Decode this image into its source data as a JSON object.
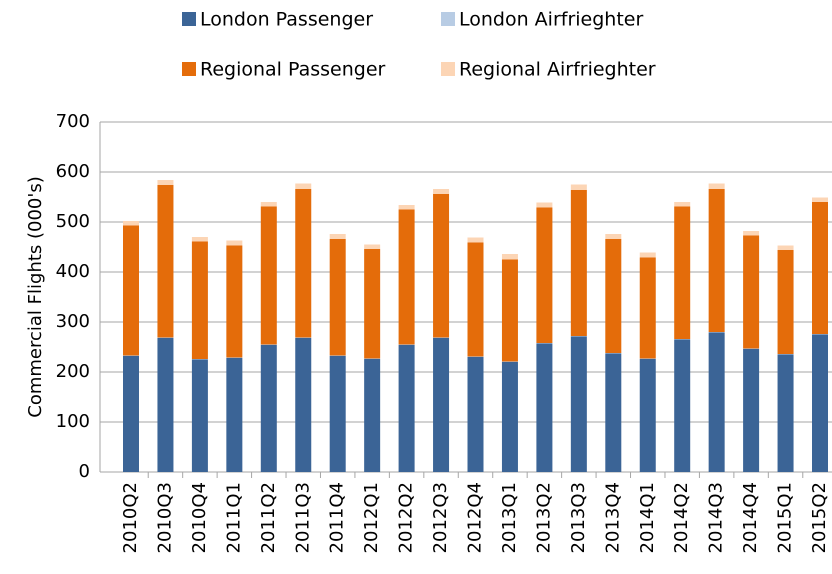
{
  "chart_data": {
    "type": "stacked_bar",
    "categories": [
      "2010Q2",
      "2010Q3",
      "2010Q4",
      "2011Q1",
      "2011Q2",
      "2011Q3",
      "2011Q4",
      "2012Q1",
      "2012Q2",
      "2012Q3",
      "2012Q4",
      "2013Q1",
      "2013Q2",
      "2013Q3",
      "2013Q4",
      "2014Q1",
      "2014Q2",
      "2014Q3",
      "2014Q4",
      "2015Q1",
      "2015Q2"
    ],
    "series": [
      {
        "name": "London Passenger",
        "color": "#3b6496",
        "values": [
          232,
          268,
          225,
          228,
          254,
          268,
          232,
          226,
          254,
          268,
          230,
          220,
          257,
          271,
          237,
          226,
          265,
          279,
          246,
          235,
          275
        ]
      },
      {
        "name": "London Airfrieghter",
        "color": "#b8cce4",
        "values": [
          1,
          1,
          1,
          1,
          1,
          1,
          1,
          1,
          1,
          1,
          1,
          1,
          1,
          1,
          1,
          1,
          1,
          1,
          1,
          1,
          1
        ]
      },
      {
        "name": "Regional Passenger",
        "color": "#e46c0a",
        "values": [
          260,
          305,
          235,
          224,
          276,
          297,
          233,
          219,
          270,
          287,
          228,
          204,
          271,
          292,
          228,
          202,
          265,
          286,
          226,
          208,
          264
        ]
      },
      {
        "name": "Regional Airfrieghter",
        "color": "#fcd5b5",
        "values": [
          9,
          10,
          9,
          10,
          9,
          11,
          10,
          9,
          9,
          10,
          10,
          11,
          10,
          11,
          10,
          10,
          9,
          11,
          9,
          9,
          9
        ]
      }
    ],
    "y_label": "Commercial Flights (000's)",
    "ylim": [
      0,
      700
    ],
    "yticks": [
      0,
      100,
      200,
      300,
      400,
      500,
      600,
      700
    ],
    "grid": true,
    "legend": "top"
  }
}
